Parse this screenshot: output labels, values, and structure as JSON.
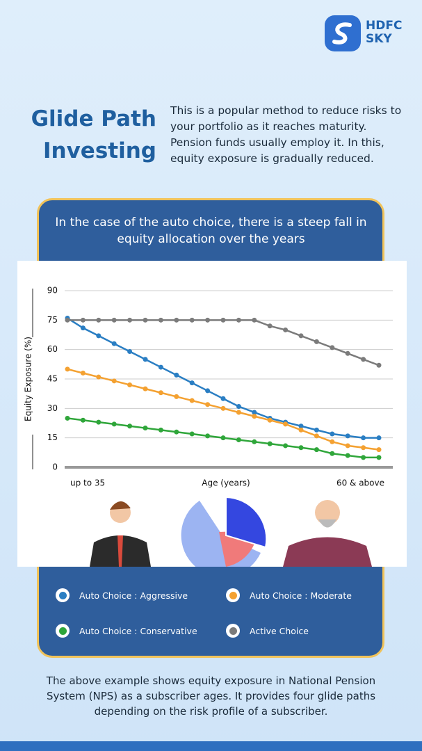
{
  "logo": {
    "line1": "HDFC",
    "line2": "SKY"
  },
  "header": {
    "title_line1": "Glide Path",
    "title_line2": "Investing",
    "intro": "This is a popular method to reduce risks to your portfolio as it reaches maturity. Pension funds usually employ it. In this, equity exposure is gradually reduced."
  },
  "chart_data": {
    "type": "line",
    "title": "In the case of the auto choice, there is a steep fall in equity allocation over the years",
    "x_label": "Age (years)",
    "y_label": "Equity  Exposure (%)",
    "categories": [
      "up to 35",
      null,
      null,
      null,
      null,
      null,
      null,
      null,
      null,
      null,
      null,
      null,
      null,
      null,
      null,
      null,
      null,
      null,
      null,
      null,
      "60 & above"
    ],
    "ylim": [
      0,
      90
    ],
    "yticks": [
      0,
      15,
      30,
      45,
      60,
      75,
      90
    ],
    "grid": true,
    "series": [
      {
        "name": "Auto Choice : Aggressive",
        "color": "#2a7ec3",
        "values": [
          76,
          71,
          67,
          63,
          59,
          55,
          51,
          47,
          43,
          39,
          35,
          31,
          28,
          25,
          23,
          21,
          19,
          17,
          16,
          15,
          15
        ]
      },
      {
        "name": "Auto Choice : Moderate",
        "color": "#f4a131",
        "values": [
          50,
          48,
          46,
          44,
          42,
          40,
          38,
          36,
          34,
          32,
          30,
          28,
          26,
          24,
          22,
          19,
          16,
          13,
          11,
          10,
          9
        ]
      },
      {
        "name": "Auto Choice : Conservative",
        "color": "#2fa63a",
        "values": [
          25,
          24,
          23,
          22,
          21,
          20,
          19,
          18,
          17,
          16,
          15,
          14,
          13,
          12,
          11,
          10,
          9,
          7,
          6,
          5,
          5
        ]
      },
      {
        "name": "Active Choice",
        "color": "#7b7b7b",
        "values": [
          75,
          75,
          75,
          75,
          75,
          75,
          75,
          75,
          75,
          75,
          75,
          75,
          75,
          72,
          70,
          67,
          64,
          61,
          58,
          55,
          52
        ]
      }
    ]
  },
  "footer": "The above example shows equity exposure in National Pension System (NPS) as a subscriber ages. It provides four glide paths depending on the risk profile of a subscriber."
}
